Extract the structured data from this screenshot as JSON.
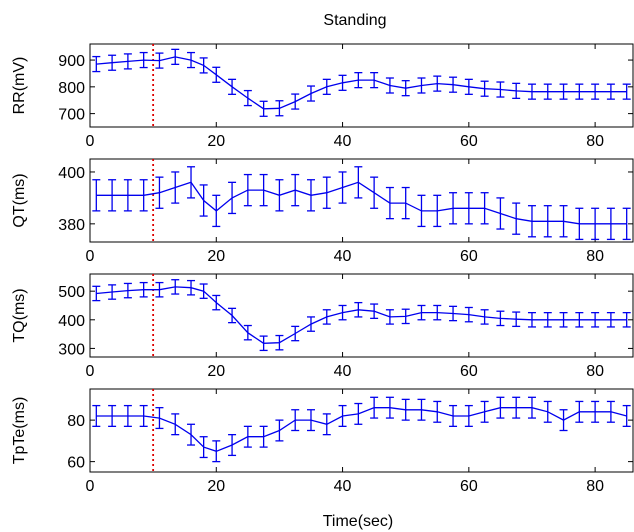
{
  "figure": {
    "title": "Standing",
    "xlabel": "Time(sec)",
    "series_color": "#0000ee",
    "marker_color": "#dd0000"
  },
  "chart_data": [
    {
      "type": "line",
      "ylabel": "RR(mV)",
      "xlim": [
        0,
        86
      ],
      "ylim": [
        650,
        960
      ],
      "xticks": [
        0,
        20,
        40,
        60,
        80
      ],
      "yticks": [
        700,
        800,
        900
      ],
      "grid": false,
      "vline_x": 10,
      "x": [
        1,
        3.5,
        6,
        8.5,
        11,
        13.5,
        16,
        18,
        20,
        22.5,
        25,
        27.5,
        30,
        32.5,
        35,
        37.5,
        40,
        42.5,
        45,
        47.5,
        50,
        52.5,
        55,
        57.5,
        60,
        62.5,
        65,
        67.5,
        70,
        72.5,
        75,
        77.5,
        80,
        82.5,
        85
      ],
      "y": [
        885,
        890,
        895,
        900,
        898,
        912,
        900,
        880,
        845,
        800,
        758,
        718,
        720,
        745,
        775,
        800,
        815,
        825,
        825,
        805,
        795,
        805,
        812,
        808,
        800,
        793,
        790,
        785,
        782,
        782,
        782,
        782,
        782,
        782,
        782
      ],
      "err": [
        28,
        28,
        28,
        28,
        28,
        28,
        28,
        28,
        28,
        28,
        28,
        28,
        28,
        28,
        28,
        28,
        28,
        28,
        28,
        28,
        28,
        28,
        28,
        28,
        28,
        28,
        28,
        28,
        28,
        28,
        28,
        28,
        28,
        28,
        28
      ]
    },
    {
      "type": "line",
      "ylabel": "QT(ms)",
      "xlim": [
        0,
        86
      ],
      "ylim": [
        373,
        405
      ],
      "xticks": [
        0,
        20,
        40,
        60,
        80
      ],
      "yticks": [
        380,
        400
      ],
      "grid": false,
      "vline_x": 10,
      "x": [
        1,
        3.5,
        6,
        8.5,
        11,
        13.5,
        16,
        18,
        20,
        22.5,
        25,
        27.5,
        30,
        32.5,
        35,
        37.5,
        40,
        42.5,
        45,
        47.5,
        50,
        52.5,
        55,
        57.5,
        60,
        62.5,
        65,
        67.5,
        70,
        72.5,
        75,
        77.5,
        80,
        82.5,
        85
      ],
      "y": [
        391,
        391,
        391,
        391,
        392,
        394,
        396,
        389,
        385,
        390,
        393,
        393,
        391,
        393,
        391,
        392,
        394,
        396,
        392,
        388,
        388,
        385,
        385,
        386,
        386,
        386,
        384,
        382,
        381,
        381,
        381,
        380,
        380,
        380,
        380
      ],
      "err": [
        6,
        6,
        6,
        6,
        6,
        6,
        6,
        6,
        6,
        6,
        6,
        6,
        6,
        6,
        6,
        6,
        6,
        6,
        6,
        6,
        6,
        6,
        6,
        6,
        6,
        6,
        6,
        6,
        6,
        6,
        6,
        6,
        6,
        6,
        6
      ]
    },
    {
      "type": "line",
      "ylabel": "TQ(ms)",
      "xlim": [
        0,
        86
      ],
      "ylim": [
        270,
        560
      ],
      "xticks": [
        0,
        20,
        40,
        60,
        80
      ],
      "yticks": [
        300,
        400,
        500
      ],
      "grid": false,
      "vline_x": 10,
      "x": [
        1,
        3.5,
        6,
        8.5,
        11,
        13.5,
        16,
        18,
        20,
        22.5,
        25,
        27.5,
        30,
        32.5,
        35,
        37.5,
        40,
        42.5,
        45,
        47.5,
        50,
        52.5,
        55,
        57.5,
        60,
        62.5,
        65,
        67.5,
        70,
        72.5,
        75,
        77.5,
        80,
        82.5,
        85
      ],
      "y": [
        492,
        497,
        502,
        505,
        505,
        515,
        512,
        500,
        460,
        415,
        355,
        318,
        320,
        352,
        385,
        410,
        425,
        435,
        430,
        410,
        412,
        425,
        425,
        422,
        418,
        410,
        405,
        402,
        400,
        400,
        400,
        400,
        400,
        400,
        400
      ],
      "err": [
        25,
        25,
        25,
        25,
        25,
        25,
        25,
        25,
        25,
        25,
        25,
        25,
        25,
        25,
        25,
        25,
        25,
        25,
        25,
        25,
        25,
        25,
        25,
        25,
        25,
        25,
        25,
        25,
        25,
        25,
        25,
        25,
        25,
        25,
        25
      ]
    },
    {
      "type": "line",
      "ylabel": "TpTe(ms)",
      "xlim": [
        0,
        86
      ],
      "ylim": [
        55,
        95
      ],
      "xticks": [
        0,
        20,
        40,
        60,
        80
      ],
      "yticks": [
        60,
        80
      ],
      "grid": false,
      "vline_x": 10,
      "x": [
        1,
        3.5,
        6,
        8.5,
        11,
        13.5,
        16,
        18,
        20,
        22.5,
        25,
        27.5,
        30,
        32.5,
        35,
        37.5,
        40,
        42.5,
        45,
        47.5,
        50,
        52.5,
        55,
        57.5,
        60,
        62.5,
        65,
        67.5,
        70,
        72.5,
        75,
        77.5,
        80,
        82.5,
        85
      ],
      "y": [
        82,
        82,
        82,
        82,
        81,
        78,
        73,
        67,
        65,
        68,
        72,
        72,
        75,
        80,
        80,
        78,
        82,
        83,
        86,
        86,
        85,
        85,
        84,
        82,
        82,
        84,
        86,
        86,
        86,
        84,
        80,
        84,
        84,
        84,
        82
      ],
      "err": [
        5,
        5,
        5,
        5,
        5,
        5,
        5,
        5,
        5,
        5,
        5,
        5,
        5,
        5,
        5,
        5,
        5,
        5,
        5,
        5,
        5,
        5,
        5,
        5,
        5,
        5,
        5,
        5,
        5,
        5,
        5,
        5,
        5,
        5,
        5
      ]
    }
  ]
}
